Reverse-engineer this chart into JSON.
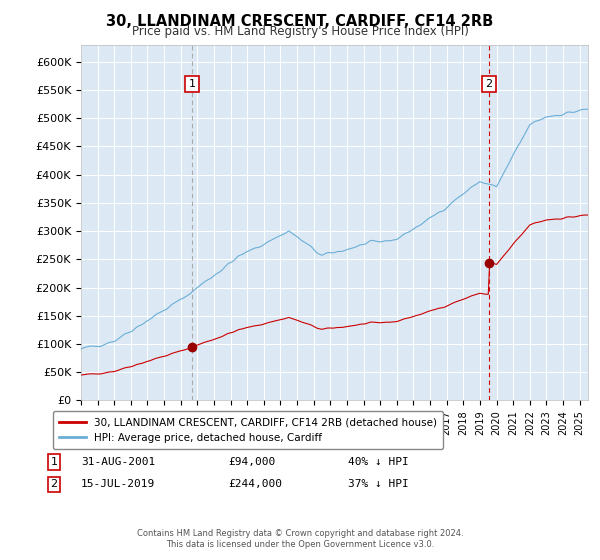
{
  "title": "30, LLANDINAM CRESCENT, CARDIFF, CF14 2RB",
  "subtitle": "Price paid vs. HM Land Registry's House Price Index (HPI)",
  "background_color": "#dce9f5",
  "plot_bg_color": "#dce9f5",
  "yticks": [
    0,
    50000,
    100000,
    150000,
    200000,
    250000,
    300000,
    350000,
    400000,
    450000,
    500000,
    550000,
    600000
  ],
  "ytick_labels": [
    "£0",
    "£50K",
    "£100K",
    "£150K",
    "£200K",
    "£250K",
    "£300K",
    "£350K",
    "£400K",
    "£450K",
    "£500K",
    "£550K",
    "£600K"
  ],
  "ylim": [
    0,
    630000
  ],
  "xlim_start": 1995.0,
  "xlim_end": 2025.5,
  "sale1_date": 2001.67,
  "sale1_price": 94000,
  "sale1_label": "1",
  "sale2_date": 2019.54,
  "sale2_price": 244000,
  "sale2_label": "2",
  "legend_entry1": "30, LLANDINAM CRESCENT, CARDIFF, CF14 2RB (detached house)",
  "legend_entry2": "HPI: Average price, detached house, Cardiff",
  "footer": "Contains HM Land Registry data © Crown copyright and database right 2024.\nThis data is licensed under the Open Government Licence v3.0.",
  "hpi_color": "#6baed6",
  "price_color": "#cc0000",
  "vline1_color": "#aaaaaa",
  "vline2_color": "#cc0000",
  "marker_color": "#990000"
}
